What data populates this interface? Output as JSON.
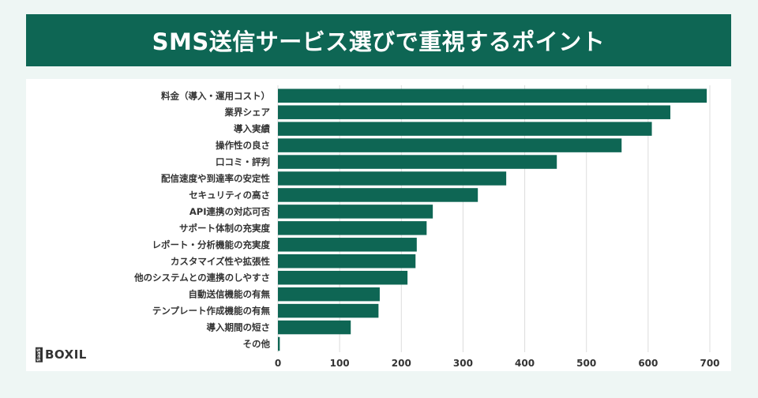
{
  "title": "SMS送信サービス選びで重視するポイント",
  "logo": {
    "small": "SaaS",
    "brand": "BOXIL"
  },
  "colors": {
    "bar": "#0e6654",
    "banner": "#0e6654",
    "background": "#eef6f4"
  },
  "chart_data": {
    "type": "bar",
    "orientation": "horizontal",
    "categories": [
      "料金（導入・運用コスト）",
      "業界シェア",
      "導入実績",
      "操作性の良さ",
      "口コミ・評判",
      "配信速度や到達率の安定性",
      "セキュリティの高さ",
      "API連携の対応可否",
      "サポート体制の充実度",
      "レポート・分析機能の充実度",
      "カスタマイズ性や拡張性",
      "他のシステムとの連携のしやすさ",
      "自動送信機能の有無",
      "テンプレート作成機能の有無",
      "導入期間の短さ",
      "その他"
    ],
    "values": [
      695,
      636,
      606,
      557,
      452,
      370,
      324,
      251,
      241,
      225,
      223,
      210,
      165,
      163,
      118,
      3
    ],
    "xlim": [
      0,
      700
    ],
    "xticks": [
      "0",
      "100",
      "200",
      "300",
      "400",
      "500",
      "600",
      "700"
    ],
    "grid": true
  }
}
